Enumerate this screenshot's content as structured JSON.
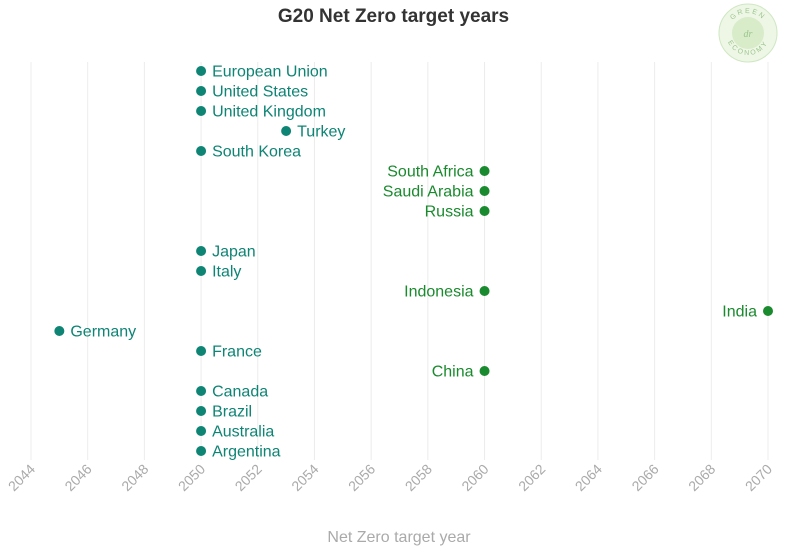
{
  "chart_data": {
    "type": "scatter",
    "title": "G20 Net Zero target years",
    "xlabel": "Net Zero target year",
    "ylabel": "",
    "xlim": [
      2044,
      2070
    ],
    "x_ticks": [
      2044,
      2046,
      2048,
      2050,
      2052,
      2054,
      2056,
      2058,
      2060,
      2062,
      2064,
      2066,
      2068,
      2070
    ],
    "grid": true,
    "colors": {
      "teal": "#0e8474",
      "green": "#1a8a2e",
      "grid": "#ececec",
      "tick": "#aaaaaa"
    },
    "points": [
      {
        "country": "European Union",
        "year": 2050
      },
      {
        "country": "United States",
        "year": 2050
      },
      {
        "country": "United Kingdom",
        "year": 2050
      },
      {
        "country": "Turkey",
        "year": 2053
      },
      {
        "country": "South Korea",
        "year": 2050
      },
      {
        "country": "South Africa",
        "year": 2060
      },
      {
        "country": "Saudi Arabia",
        "year": 2060
      },
      {
        "country": "Russia",
        "year": 2060
      },
      {
        "country": "",
        "year": null
      },
      {
        "country": "Japan",
        "year": 2050
      },
      {
        "country": "Italy",
        "year": 2050
      },
      {
        "country": "Indonesia",
        "year": 2060
      },
      {
        "country": "India",
        "year": 2070
      },
      {
        "country": "Germany",
        "year": 2045
      },
      {
        "country": "France",
        "year": 2050
      },
      {
        "country": "China",
        "year": 2060
      },
      {
        "country": "Canada",
        "year": 2050
      },
      {
        "country": "Brazil",
        "year": 2050
      },
      {
        "country": "Australia",
        "year": 2050
      },
      {
        "country": "Argentina",
        "year": 2050
      }
    ]
  },
  "logo": {
    "top_text": "GREEN",
    "bottom_text": "ECONOMY",
    "mark": "dr"
  }
}
